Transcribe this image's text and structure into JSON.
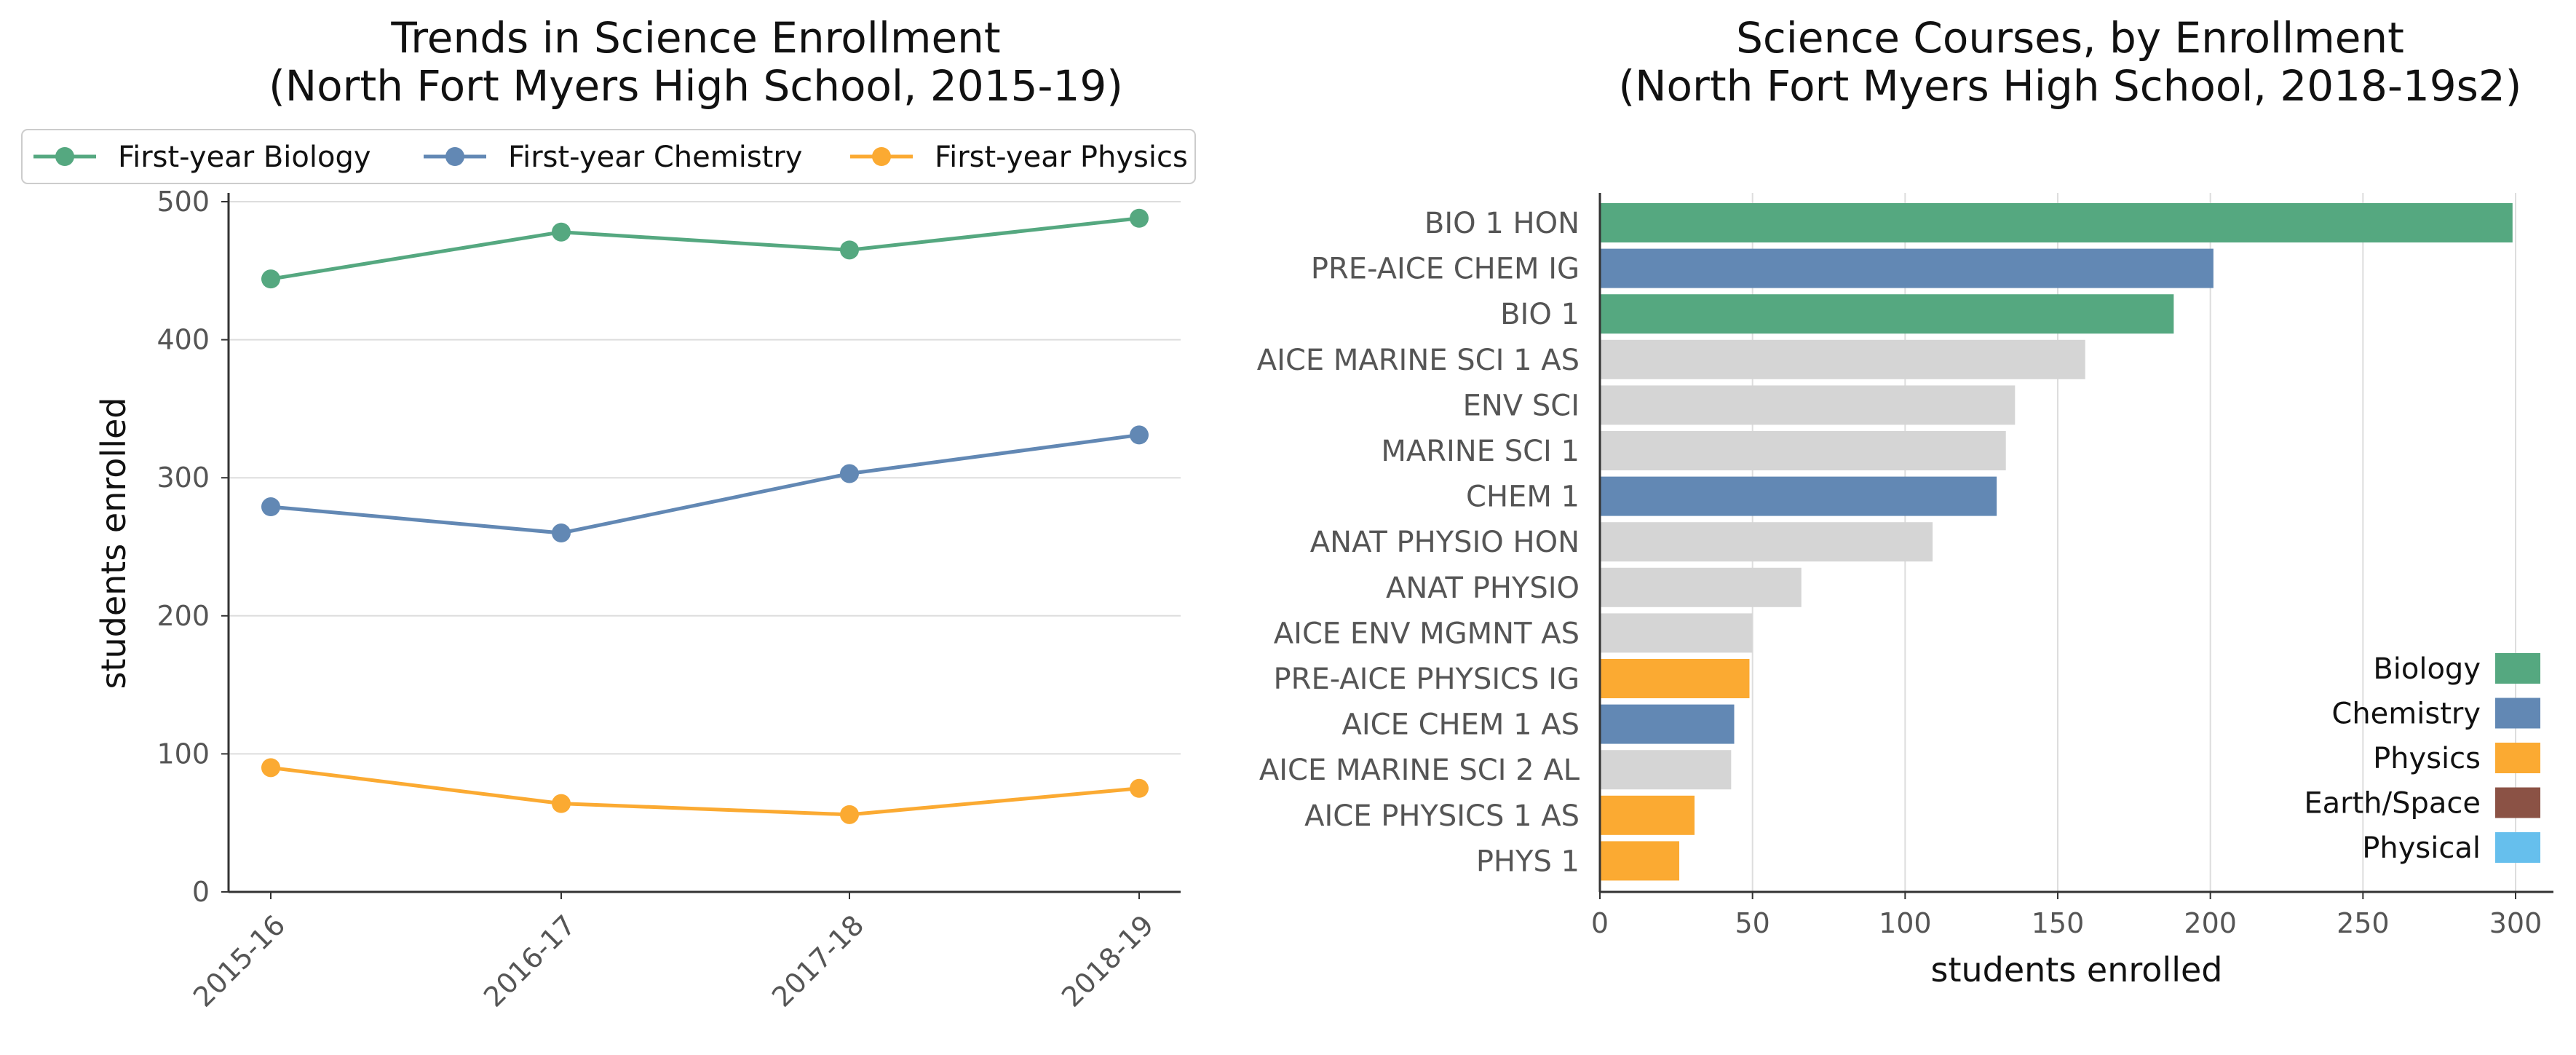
{
  "colors": {
    "Biology": "#55a880",
    "Chemistry": "#6288b4",
    "Physics": "#fbaa32",
    "Earth/Space": "#8b5245",
    "Physical": "#66bfed",
    "Other": "#d5d5d5"
  },
  "chart_data": [
    {
      "type": "line",
      "title": "Trends in Science Enrollment",
      "subtitle": "(North Fort Myers High School, 2015-19)",
      "xlabel": "",
      "ylabel": "students enrolled",
      "x": [
        "2015-16",
        "2016-17",
        "2017-18",
        "2018-19"
      ],
      "ylim": [
        0,
        500
      ],
      "yticks": [
        0,
        100,
        200,
        300,
        400,
        500
      ],
      "grid": "horizontal",
      "legend_position": "top",
      "series": [
        {
          "name": "First-year Biology",
          "color_key": "Biology",
          "values": [
            444,
            478,
            465,
            488
          ]
        },
        {
          "name": "First-year Chemistry",
          "color_key": "Chemistry",
          "values": [
            279,
            260,
            303,
            331
          ]
        },
        {
          "name": "First-year Physics",
          "color_key": "Physics",
          "values": [
            90,
            64,
            56,
            75
          ]
        }
      ]
    },
    {
      "type": "bar",
      "orientation": "horizontal",
      "title": "Science Courses, by Enrollment",
      "subtitle": "(North Fort Myers High School, 2018-19s2)",
      "xlabel": "students enrolled",
      "ylabel": "",
      "xlim": [
        0,
        315
      ],
      "xticks": [
        0,
        50,
        100,
        150,
        200,
        250,
        300
      ],
      "grid": "vertical",
      "legend_position": "lower-right",
      "legend": [
        "Biology",
        "Chemistry",
        "Physics",
        "Earth/Space",
        "Physical"
      ],
      "bars": [
        {
          "label": "BIO 1 HON",
          "value": 299,
          "subject": "Biology"
        },
        {
          "label": "PRE-AICE CHEM IG",
          "value": 201,
          "subject": "Chemistry"
        },
        {
          "label": "BIO 1",
          "value": 188,
          "subject": "Biology"
        },
        {
          "label": "AICE MARINE SCI 1 AS",
          "value": 159,
          "subject": "Other"
        },
        {
          "label": "ENV SCI",
          "value": 136,
          "subject": "Other"
        },
        {
          "label": "MARINE SCI 1",
          "value": 133,
          "subject": "Other"
        },
        {
          "label": "CHEM 1",
          "value": 130,
          "subject": "Chemistry"
        },
        {
          "label": "ANAT PHYSIO HON",
          "value": 109,
          "subject": "Other"
        },
        {
          "label": "ANAT PHYSIO",
          "value": 66,
          "subject": "Other"
        },
        {
          "label": "AICE ENV MGMNT AS",
          "value": 50,
          "subject": "Other"
        },
        {
          "label": "PRE-AICE PHYSICS IG",
          "value": 49,
          "subject": "Physics"
        },
        {
          "label": "AICE CHEM 1 AS",
          "value": 44,
          "subject": "Chemistry"
        },
        {
          "label": "AICE MARINE SCI 2 AL",
          "value": 43,
          "subject": "Other"
        },
        {
          "label": "AICE PHYSICS 1 AS",
          "value": 31,
          "subject": "Physics"
        },
        {
          "label": "PHYS 1",
          "value": 26,
          "subject": "Physics"
        }
      ]
    }
  ]
}
